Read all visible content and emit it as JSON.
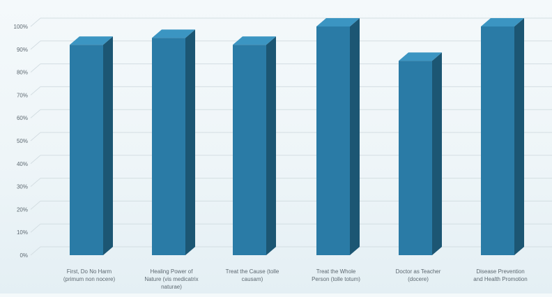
{
  "chart_data": {
    "type": "bar",
    "title": "",
    "xlabel": "",
    "ylabel": "",
    "ylim": [
      0,
      100
    ],
    "yticks": [
      "0%",
      "10%",
      "20%",
      "30%",
      "40%",
      "50%",
      "60%",
      "70%",
      "80%",
      "90%",
      "100%"
    ],
    "grid": true,
    "categories": [
      [
        "First, Do No Harm",
        "(primum non nocere)"
      ],
      [
        "Healing Power of",
        "Nature (vis medicatrix",
        "naturae)"
      ],
      [
        "Treat the Cause (tolle",
        "causam)"
      ],
      [
        "Treat the Whole",
        "Person (tolle totum)"
      ],
      [
        "Doctor as Teacher",
        "(docere)"
      ],
      [
        "Disease Prevention",
        "and Health Promotion"
      ]
    ],
    "values": [
      92,
      95,
      92,
      100,
      85,
      100
    ]
  },
  "colors": {
    "bar_front": "#2a7ba6",
    "bar_side": "#1c5673",
    "bar_top": "#3b95c2",
    "grid": "#d3dde2",
    "axis_text": "#5d6870"
  }
}
